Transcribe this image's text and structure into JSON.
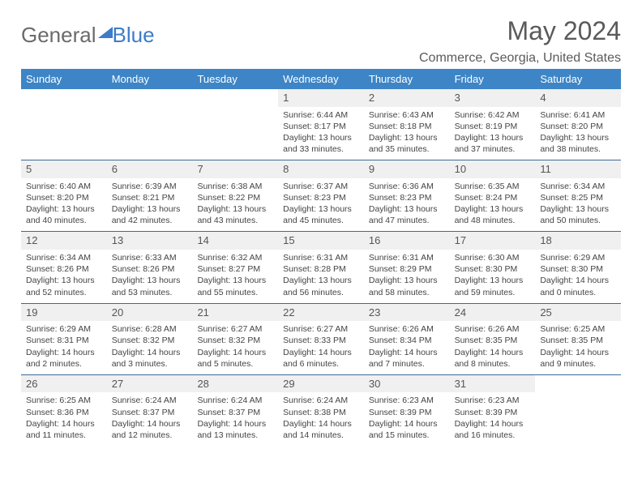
{
  "logo": {
    "text1": "General",
    "text2": "Blue"
  },
  "title": "May 2024",
  "location": "Commerce, Georgia, United States",
  "header_bg": "#3d85c6",
  "header_fg": "#ffffff",
  "rule_color": "#3d6a99",
  "cell_shade": "#f0f0f0",
  "days": [
    "Sunday",
    "Monday",
    "Tuesday",
    "Wednesday",
    "Thursday",
    "Friday",
    "Saturday"
  ],
  "weeks": [
    [
      null,
      null,
      null,
      {
        "n": "1",
        "sr": "6:44 AM",
        "ss": "8:17 PM",
        "dl": "13 hours and 33 minutes."
      },
      {
        "n": "2",
        "sr": "6:43 AM",
        "ss": "8:18 PM",
        "dl": "13 hours and 35 minutes."
      },
      {
        "n": "3",
        "sr": "6:42 AM",
        "ss": "8:19 PM",
        "dl": "13 hours and 37 minutes."
      },
      {
        "n": "4",
        "sr": "6:41 AM",
        "ss": "8:20 PM",
        "dl": "13 hours and 38 minutes."
      }
    ],
    [
      {
        "n": "5",
        "sr": "6:40 AM",
        "ss": "8:20 PM",
        "dl": "13 hours and 40 minutes."
      },
      {
        "n": "6",
        "sr": "6:39 AM",
        "ss": "8:21 PM",
        "dl": "13 hours and 42 minutes."
      },
      {
        "n": "7",
        "sr": "6:38 AM",
        "ss": "8:22 PM",
        "dl": "13 hours and 43 minutes."
      },
      {
        "n": "8",
        "sr": "6:37 AM",
        "ss": "8:23 PM",
        "dl": "13 hours and 45 minutes."
      },
      {
        "n": "9",
        "sr": "6:36 AM",
        "ss": "8:23 PM",
        "dl": "13 hours and 47 minutes."
      },
      {
        "n": "10",
        "sr": "6:35 AM",
        "ss": "8:24 PM",
        "dl": "13 hours and 48 minutes."
      },
      {
        "n": "11",
        "sr": "6:34 AM",
        "ss": "8:25 PM",
        "dl": "13 hours and 50 minutes."
      }
    ],
    [
      {
        "n": "12",
        "sr": "6:34 AM",
        "ss": "8:26 PM",
        "dl": "13 hours and 52 minutes."
      },
      {
        "n": "13",
        "sr": "6:33 AM",
        "ss": "8:26 PM",
        "dl": "13 hours and 53 minutes."
      },
      {
        "n": "14",
        "sr": "6:32 AM",
        "ss": "8:27 PM",
        "dl": "13 hours and 55 minutes."
      },
      {
        "n": "15",
        "sr": "6:31 AM",
        "ss": "8:28 PM",
        "dl": "13 hours and 56 minutes."
      },
      {
        "n": "16",
        "sr": "6:31 AM",
        "ss": "8:29 PM",
        "dl": "13 hours and 58 minutes."
      },
      {
        "n": "17",
        "sr": "6:30 AM",
        "ss": "8:30 PM",
        "dl": "13 hours and 59 minutes."
      },
      {
        "n": "18",
        "sr": "6:29 AM",
        "ss": "8:30 PM",
        "dl": "14 hours and 0 minutes."
      }
    ],
    [
      {
        "n": "19",
        "sr": "6:29 AM",
        "ss": "8:31 PM",
        "dl": "14 hours and 2 minutes."
      },
      {
        "n": "20",
        "sr": "6:28 AM",
        "ss": "8:32 PM",
        "dl": "14 hours and 3 minutes."
      },
      {
        "n": "21",
        "sr": "6:27 AM",
        "ss": "8:32 PM",
        "dl": "14 hours and 5 minutes."
      },
      {
        "n": "22",
        "sr": "6:27 AM",
        "ss": "8:33 PM",
        "dl": "14 hours and 6 minutes."
      },
      {
        "n": "23",
        "sr": "6:26 AM",
        "ss": "8:34 PM",
        "dl": "14 hours and 7 minutes."
      },
      {
        "n": "24",
        "sr": "6:26 AM",
        "ss": "8:35 PM",
        "dl": "14 hours and 8 minutes."
      },
      {
        "n": "25",
        "sr": "6:25 AM",
        "ss": "8:35 PM",
        "dl": "14 hours and 9 minutes."
      }
    ],
    [
      {
        "n": "26",
        "sr": "6:25 AM",
        "ss": "8:36 PM",
        "dl": "14 hours and 11 minutes."
      },
      {
        "n": "27",
        "sr": "6:24 AM",
        "ss": "8:37 PM",
        "dl": "14 hours and 12 minutes."
      },
      {
        "n": "28",
        "sr": "6:24 AM",
        "ss": "8:37 PM",
        "dl": "14 hours and 13 minutes."
      },
      {
        "n": "29",
        "sr": "6:24 AM",
        "ss": "8:38 PM",
        "dl": "14 hours and 14 minutes."
      },
      {
        "n": "30",
        "sr": "6:23 AM",
        "ss": "8:39 PM",
        "dl": "14 hours and 15 minutes."
      },
      {
        "n": "31",
        "sr": "6:23 AM",
        "ss": "8:39 PM",
        "dl": "14 hours and 16 minutes."
      },
      null
    ]
  ],
  "labels": {
    "sunrise": "Sunrise:",
    "sunset": "Sunset:",
    "daylight": "Daylight:"
  }
}
